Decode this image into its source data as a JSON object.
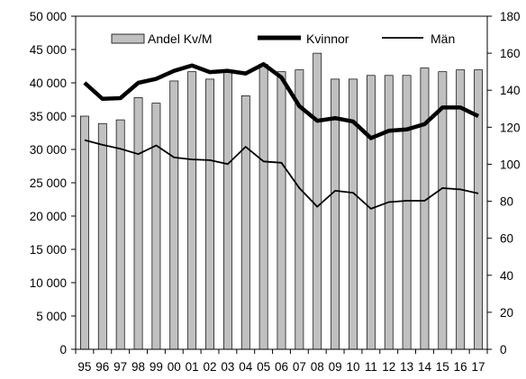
{
  "chart_data": {
    "type": "bar+line",
    "categories": [
      "95",
      "96",
      "97",
      "98",
      "99",
      "00",
      "01",
      "02",
      "03",
      "04",
      "05",
      "06",
      "07",
      "08",
      "09",
      "10",
      "11",
      "12",
      "13",
      "14",
      "15",
      "16",
      "17"
    ],
    "left_axis": {
      "ylim": [
        0,
        50000
      ],
      "ticks": [
        "0",
        "5 000",
        "10 000",
        "15 000",
        "20 000",
        "25 000",
        "30 000",
        "35 000",
        "40 000",
        "45 000",
        "50 000"
      ]
    },
    "right_axis": {
      "ylim": [
        0,
        180
      ],
      "ticks": [
        "0",
        "20",
        "40",
        "60",
        "80",
        "100",
        "120",
        "140",
        "160",
        "180"
      ]
    },
    "series": [
      {
        "name": "Andel Kv/M",
        "kind": "bar",
        "axis": "right",
        "color": "#c0c0c0",
        "values": [
          126,
          122,
          124,
          136,
          133,
          145,
          150,
          146,
          150,
          137,
          154,
          150,
          151,
          160,
          146,
          146,
          148,
          148,
          148,
          152,
          150,
          151,
          151
        ]
      },
      {
        "name": "Kvinnor",
        "kind": "line",
        "axis": "left",
        "color": "#000000",
        "weight": "thick",
        "values": [
          40000,
          37600,
          37700,
          40000,
          40600,
          41800,
          42600,
          41600,
          41800,
          41400,
          42800,
          40800,
          36500,
          34300,
          34700,
          34200,
          31700,
          32800,
          33000,
          33800,
          36300,
          36300,
          35000
        ]
      },
      {
        "name": "Män",
        "kind": "line",
        "axis": "left",
        "color": "#000000",
        "weight": "thin",
        "values": [
          31400,
          30700,
          30100,
          29300,
          30600,
          28800,
          28500,
          28400,
          27800,
          30400,
          28200,
          28000,
          24200,
          21400,
          23800,
          23500,
          21100,
          22100,
          22300,
          22300,
          24200,
          24000,
          23400
        ]
      }
    ],
    "legend": {
      "placement": "top-center",
      "items": [
        "Andel Kv/M",
        "Kvinnor",
        "Män"
      ]
    },
    "grid": false
  }
}
